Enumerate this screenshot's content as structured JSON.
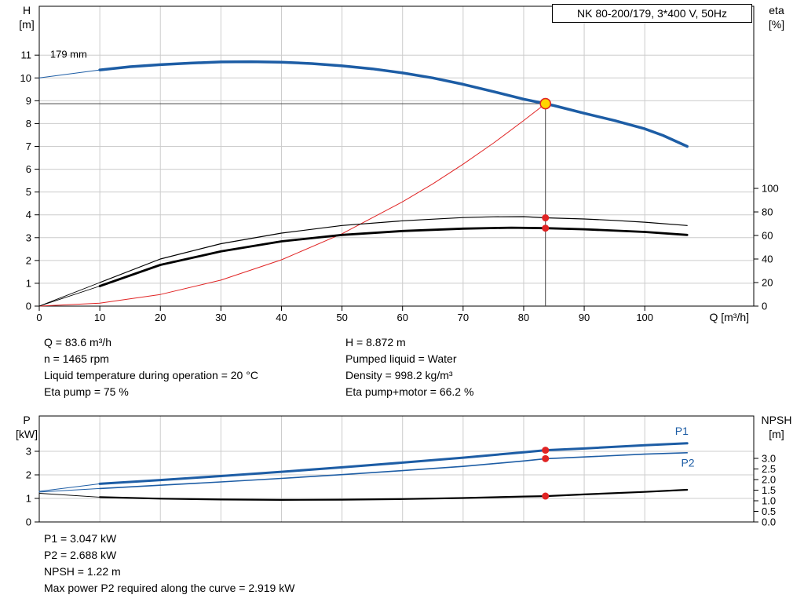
{
  "title_box": "NK 80-200/179, 3*400 V, 50Hz",
  "colors": {
    "blue": "#1d5da5",
    "red": "#e02424",
    "black": "#000000",
    "yellow": "#ffd500",
    "grid": "#cccccc",
    "ref": "#444444"
  },
  "info_top": {
    "left": [
      "Q = 83.6 m³/h",
      "n = 1465 rpm",
      "Liquid temperature during operation = 20 °C",
      "Eta pump = 75 %"
    ],
    "right": [
      "H = 8.872 m",
      "Pumped liquid = Water",
      "Density = 998.2 kg/m³",
      "Eta pump+motor = 66.2 %"
    ]
  },
  "info_bottom": [
    "P1 = 3.047 kW",
    "P2 = 2.688 kW",
    "NPSH = 1.22 m",
    "Max power P2 required along the curve = 2.919 kW"
  ],
  "chart_data": [
    {
      "type": "line",
      "name": "hq-chart",
      "title": "NK 80-200/179, 3*400 V, 50Hz",
      "x": {
        "label": "Q [m³/h]",
        "min": 0,
        "max": 118,
        "ticks": [
          0,
          10,
          20,
          30,
          40,
          50,
          60,
          70,
          80,
          90,
          100
        ]
      },
      "y_left": {
        "title": [
          "H",
          "[m]"
        ],
        "min": 0,
        "max": 13.14,
        "ticks": [
          0,
          1,
          2,
          3,
          4,
          5,
          6,
          7,
          8,
          9,
          10,
          11
        ]
      },
      "y_right": {
        "title": [
          "eta",
          "[%]"
        ],
        "min": 0,
        "max": 254.7,
        "ticks": [
          0,
          20,
          40,
          60,
          80,
          100
        ]
      },
      "series": [
        {
          "name": "h-curve-leader",
          "axis": "L",
          "color": "#1d5da5",
          "width": 1,
          "points": [
            [
              0,
              10.0
            ],
            [
              10,
              10.35
            ]
          ]
        },
        {
          "name": "h-curve",
          "axis": "L",
          "color": "#1d5da5",
          "width": 3.5,
          "points": [
            [
              10,
              10.35
            ],
            [
              15,
              10.49
            ],
            [
              20,
              10.58
            ],
            [
              25,
              10.65
            ],
            [
              30,
              10.7
            ],
            [
              35,
              10.71
            ],
            [
              40,
              10.69
            ],
            [
              45,
              10.63
            ],
            [
              50,
              10.53
            ],
            [
              55,
              10.4
            ],
            [
              60,
              10.22
            ],
            [
              65,
              10.0
            ],
            [
              70,
              9.72
            ],
            [
              75,
              9.4
            ],
            [
              80,
              9.07
            ],
            [
              83.6,
              8.872
            ],
            [
              85,
              8.79
            ],
            [
              90,
              8.45
            ],
            [
              95,
              8.13
            ],
            [
              100,
              7.77
            ],
            [
              103,
              7.48
            ],
            [
              107,
              7.0
            ]
          ]
        },
        {
          "name": "system-curve",
          "axis": "L",
          "color": "#e02424",
          "width": 1,
          "points": [
            [
              0,
              0
            ],
            [
              10,
              0.13
            ],
            [
              20,
              0.51
            ],
            [
              30,
              1.14
            ],
            [
              40,
              2.03
            ],
            [
              50,
              3.17
            ],
            [
              60,
              4.57
            ],
            [
              65,
              5.36
            ],
            [
              70,
              6.22
            ],
            [
              75,
              7.14
            ],
            [
              80,
              8.13
            ],
            [
              83.6,
              8.872
            ]
          ]
        },
        {
          "name": "eta-pump-leader",
          "axis": "R",
          "color": "#000000",
          "width": 0.9,
          "points": [
            [
              0,
              0
            ],
            [
              10,
              20
            ]
          ]
        },
        {
          "name": "eta-pump-curve",
          "axis": "R",
          "color": "#000000",
          "width": 1.2,
          "points": [
            [
              10,
              20
            ],
            [
              20,
              40
            ],
            [
              30,
              53
            ],
            [
              40,
              62
            ],
            [
              50,
              68.5
            ],
            [
              60,
              72.5
            ],
            [
              70,
              75.2
            ],
            [
              75,
              75.9
            ],
            [
              80,
              76
            ],
            [
              83.6,
              75
            ],
            [
              90,
              74
            ],
            [
              95,
              72.8
            ],
            [
              100,
              71.3
            ],
            [
              107,
              68.5
            ]
          ]
        },
        {
          "name": "eta-pump-motor-leader",
          "axis": "R",
          "color": "#000000",
          "width": 0.9,
          "points": [
            [
              0,
              0
            ],
            [
              10,
              17
            ]
          ]
        },
        {
          "name": "eta-pump-motor-curve",
          "axis": "R",
          "color": "#000000",
          "width": 2.8,
          "points": [
            [
              10,
              17
            ],
            [
              20,
              35
            ],
            [
              30,
              46.5
            ],
            [
              40,
              55
            ],
            [
              50,
              60.5
            ],
            [
              60,
              63.8
            ],
            [
              70,
              65.8
            ],
            [
              78,
              66.6
            ],
            [
              83.6,
              66.2
            ],
            [
              90,
              65.3
            ],
            [
              100,
              63
            ],
            [
              107,
              60.5
            ]
          ]
        }
      ],
      "ref_lines": [
        {
          "type": "h",
          "y": 8.872,
          "axis": "L",
          "x1": 0,
          "x2": 83.6
        },
        {
          "type": "v",
          "x": 83.6,
          "axis": "L",
          "y1": 0,
          "y2": 8.872
        }
      ],
      "markers": [
        {
          "name": "duty-point",
          "x": 83.6,
          "y": 8.872,
          "axis": "L",
          "r": 6.5,
          "fill": "#ffd500",
          "stroke": "#e02424"
        },
        {
          "name": "eta-pump-point",
          "x": 83.6,
          "y": 75,
          "axis": "R",
          "r": 4.5,
          "fill": "#e02424"
        },
        {
          "name": "eta-pump-motor-point",
          "x": 83.6,
          "y": 66.2,
          "axis": "R",
          "r": 4.5,
          "fill": "#e02424"
        }
      ],
      "labels": [
        {
          "name": "impeller-diameter-label",
          "text": "179 mm",
          "x": 1.8,
          "y": 10.88,
          "axis": "L",
          "color": "#000000",
          "size": 13
        }
      ],
      "duty_point": {
        "Q": 83.6,
        "H": 8.872
      }
    },
    {
      "type": "line",
      "name": "power-npsh-chart",
      "x": {
        "min": 0,
        "max": 118,
        "ticks": [],
        "grid_ticks": [
          10,
          20,
          30,
          40,
          50,
          60,
          70,
          80,
          90,
          100
        ]
      },
      "y_left": {
        "title": [
          "P",
          "[kW]"
        ],
        "min": 0,
        "max": 4.5,
        "ticks": [
          0,
          1,
          2,
          3
        ]
      },
      "y_right": {
        "title": [
          "NPSH",
          "[m]"
        ],
        "min": 0,
        "max": 5,
        "ticks": [
          0,
          0.5,
          1,
          1.5,
          2,
          2.5,
          3
        ],
        "tick_labels": [
          "0.0",
          "0.5",
          "1.0",
          "1.5",
          "2.0",
          "2.5",
          "3.0"
        ]
      },
      "series": [
        {
          "name": "p1-leader",
          "axis": "L",
          "color": "#1d5da5",
          "width": 1,
          "points": [
            [
              0,
              1.3
            ],
            [
              10,
              1.62
            ]
          ]
        },
        {
          "name": "p1-curve",
          "axis": "L",
          "color": "#1d5da5",
          "width": 3,
          "points": [
            [
              10,
              1.62
            ],
            [
              20,
              1.78
            ],
            [
              30,
              1.95
            ],
            [
              40,
              2.13
            ],
            [
              50,
              2.32
            ],
            [
              60,
              2.52
            ],
            [
              70,
              2.73
            ],
            [
              80,
              2.96
            ],
            [
              83.6,
              3.047
            ],
            [
              90,
              3.12
            ],
            [
              100,
              3.26
            ],
            [
              107,
              3.34
            ]
          ]
        },
        {
          "name": "p2-leader",
          "axis": "L",
          "color": "#1d5da5",
          "width": 1,
          "points": [
            [
              0,
              1.27
            ],
            [
              10,
              1.42
            ]
          ]
        },
        {
          "name": "p2-curve",
          "axis": "L",
          "color": "#1d5da5",
          "width": 1.6,
          "points": [
            [
              10,
              1.42
            ],
            [
              20,
              1.56
            ],
            [
              30,
              1.7
            ],
            [
              40,
              1.85
            ],
            [
              50,
              2.01
            ],
            [
              60,
              2.18
            ],
            [
              70,
              2.36
            ],
            [
              80,
              2.59
            ],
            [
              83.6,
              2.688
            ],
            [
              90,
              2.76
            ],
            [
              100,
              2.88
            ],
            [
              107,
              2.94
            ]
          ]
        },
        {
          "name": "npsh-leader",
          "axis": "R",
          "color": "#000000",
          "width": 0.9,
          "points": [
            [
              0,
              1.35
            ],
            [
              10,
              1.17
            ]
          ]
        },
        {
          "name": "npsh-curve",
          "axis": "R",
          "color": "#000000",
          "width": 2.2,
          "points": [
            [
              10,
              1.17
            ],
            [
              20,
              1.1
            ],
            [
              30,
              1.06
            ],
            [
              40,
              1.04
            ],
            [
              50,
              1.05
            ],
            [
              60,
              1.08
            ],
            [
              70,
              1.13
            ],
            [
              80,
              1.2
            ],
            [
              83.6,
              1.22
            ],
            [
              90,
              1.3
            ],
            [
              100,
              1.42
            ],
            [
              107,
              1.52
            ]
          ]
        }
      ],
      "ref_lines": [],
      "markers": [
        {
          "name": "p1-point",
          "x": 83.6,
          "y": 3.047,
          "axis": "L",
          "r": 4.5,
          "fill": "#e02424"
        },
        {
          "name": "p2-point",
          "x": 83.6,
          "y": 2.688,
          "axis": "L",
          "r": 4.5,
          "fill": "#e02424"
        },
        {
          "name": "npsh-point",
          "x": 83.6,
          "y": 1.22,
          "axis": "R",
          "r": 4.5,
          "fill": "#e02424"
        }
      ],
      "labels": [
        {
          "name": "p1-curve-label",
          "text": "P1",
          "x": 105,
          "y": 3.7,
          "axis": "L",
          "color": "#1d5da5",
          "size": 14
        },
        {
          "name": "p2-curve-label",
          "text": "P2",
          "x": 106,
          "y": 2.35,
          "axis": "L",
          "color": "#1d5da5",
          "size": 14
        }
      ],
      "duty_point": {
        "Q": 83.6,
        "P1_kW": 3.047,
        "P2_kW": 2.688,
        "NPSH_m": 1.22
      }
    }
  ]
}
